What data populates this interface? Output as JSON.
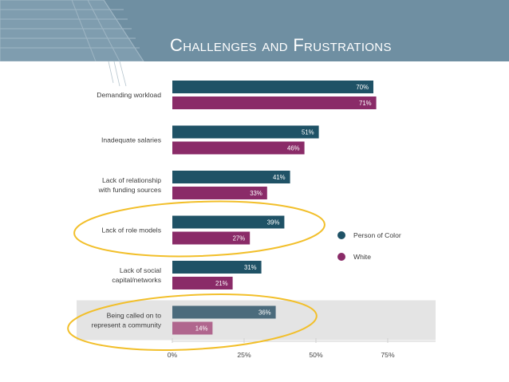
{
  "slide": {
    "title": "Challenges and Frustrations"
  },
  "colors": {
    "banner": "#6f8fa2",
    "person_of_color": "#1f5266",
    "white": "#8a2b68",
    "highlight_row": "#e4e4e4",
    "highlight_poc": "#4b6b7c",
    "highlight_white": "#b0668e",
    "ellipse": "#f2bf2a"
  },
  "chart_data": {
    "type": "bar",
    "orientation": "horizontal",
    "categories": [
      [
        "Demanding workload"
      ],
      [
        "Inadequate salaries"
      ],
      [
        "Lack of relationship",
        "with funding sources"
      ],
      [
        "Lack of role models"
      ],
      [
        "Lack of social",
        "capital/networks"
      ],
      [
        "Being called on to",
        "represent a community"
      ]
    ],
    "series": [
      {
        "name": "Person of Color",
        "values": [
          70,
          51,
          41,
          39,
          31,
          36
        ],
        "labels": [
          "70%",
          "51%",
          "41%",
          "39%",
          "31%",
          "36%"
        ]
      },
      {
        "name": "White",
        "values": [
          71,
          46,
          33,
          27,
          21,
          14
        ],
        "labels": [
          "71%",
          "46%",
          "33%",
          "27%",
          "21%",
          "14%"
        ]
      }
    ],
    "xticks": [
      "0%",
      "25%",
      "50%",
      "75%"
    ],
    "xtick_values": [
      0,
      25,
      50,
      75
    ],
    "xlim": [
      0,
      90
    ],
    "legend_position": "right",
    "highlighted_categories": [
      3,
      5
    ],
    "shaded_category": 5
  }
}
